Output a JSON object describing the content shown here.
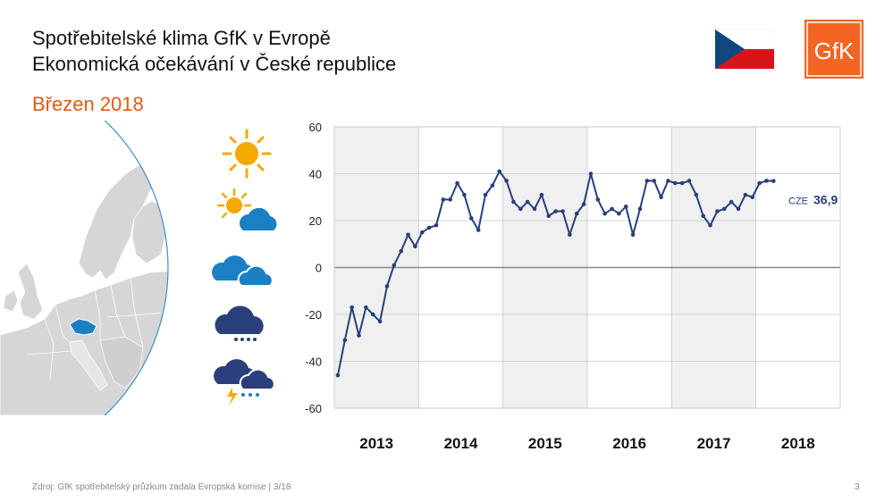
{
  "header": {
    "title_line1": "Spotřebitelské klima GfK v Evropě",
    "title_line2": "Ekonomická očekávání v České republice",
    "subtitle": "Březen 2018"
  },
  "logo": {
    "text": "GfK",
    "color": "#f26522"
  },
  "flag": {
    "country": "CZE",
    "white": "#ffffff",
    "red": "#d7141a",
    "blue": "#11457e"
  },
  "icons": [
    "sun-icon",
    "sun-cloud-icon",
    "clouds-icon",
    "rain-cloud-icon",
    "storm-cloud-icon"
  ],
  "colors": {
    "series": "#27407a",
    "band": "#f0f0f0",
    "sun": "#f5a800",
    "cloud_light": "#1b7fc4",
    "cloud_dark": "#2b3f7d",
    "map_highlight": "#1b7fc4",
    "map_land": "#d6d6d6",
    "globe_ring": "#3b8fc6"
  },
  "chart_data": {
    "type": "line",
    "title": "Ekonomická očekávání v České republice",
    "xlabel": "",
    "ylabel": "",
    "ylim": [
      -60,
      60
    ],
    "yticks": [
      60,
      40,
      20,
      0,
      -20,
      -40,
      -60
    ],
    "year_labels": [
      "2013",
      "2014",
      "2015",
      "2016",
      "2017",
      "2018"
    ],
    "series": [
      {
        "name": "CZE",
        "start": "2013-01",
        "values": [
          -46,
          -31,
          -17,
          -29,
          -17,
          -20,
          -23,
          -8,
          1,
          7,
          14,
          9,
          15,
          17,
          18,
          29,
          29,
          36,
          31,
          21,
          16,
          31,
          35,
          41,
          37,
          28,
          25,
          28,
          25,
          31,
          22,
          24,
          24,
          14,
          23,
          27,
          40,
          29,
          23,
          25,
          23,
          26,
          14,
          25,
          37,
          37,
          30,
          37,
          36,
          36,
          37,
          31,
          22,
          18,
          24,
          25,
          28,
          25,
          31,
          30,
          36,
          37,
          36.9
        ]
      }
    ],
    "end_label": {
      "prefix": "CZE",
      "value": "36,9"
    },
    "grid": true
  },
  "footer": {
    "source": "Zdroj: GfK spotřebitelský průzkum zadala Evropská komise | 3/18",
    "page": "3"
  }
}
